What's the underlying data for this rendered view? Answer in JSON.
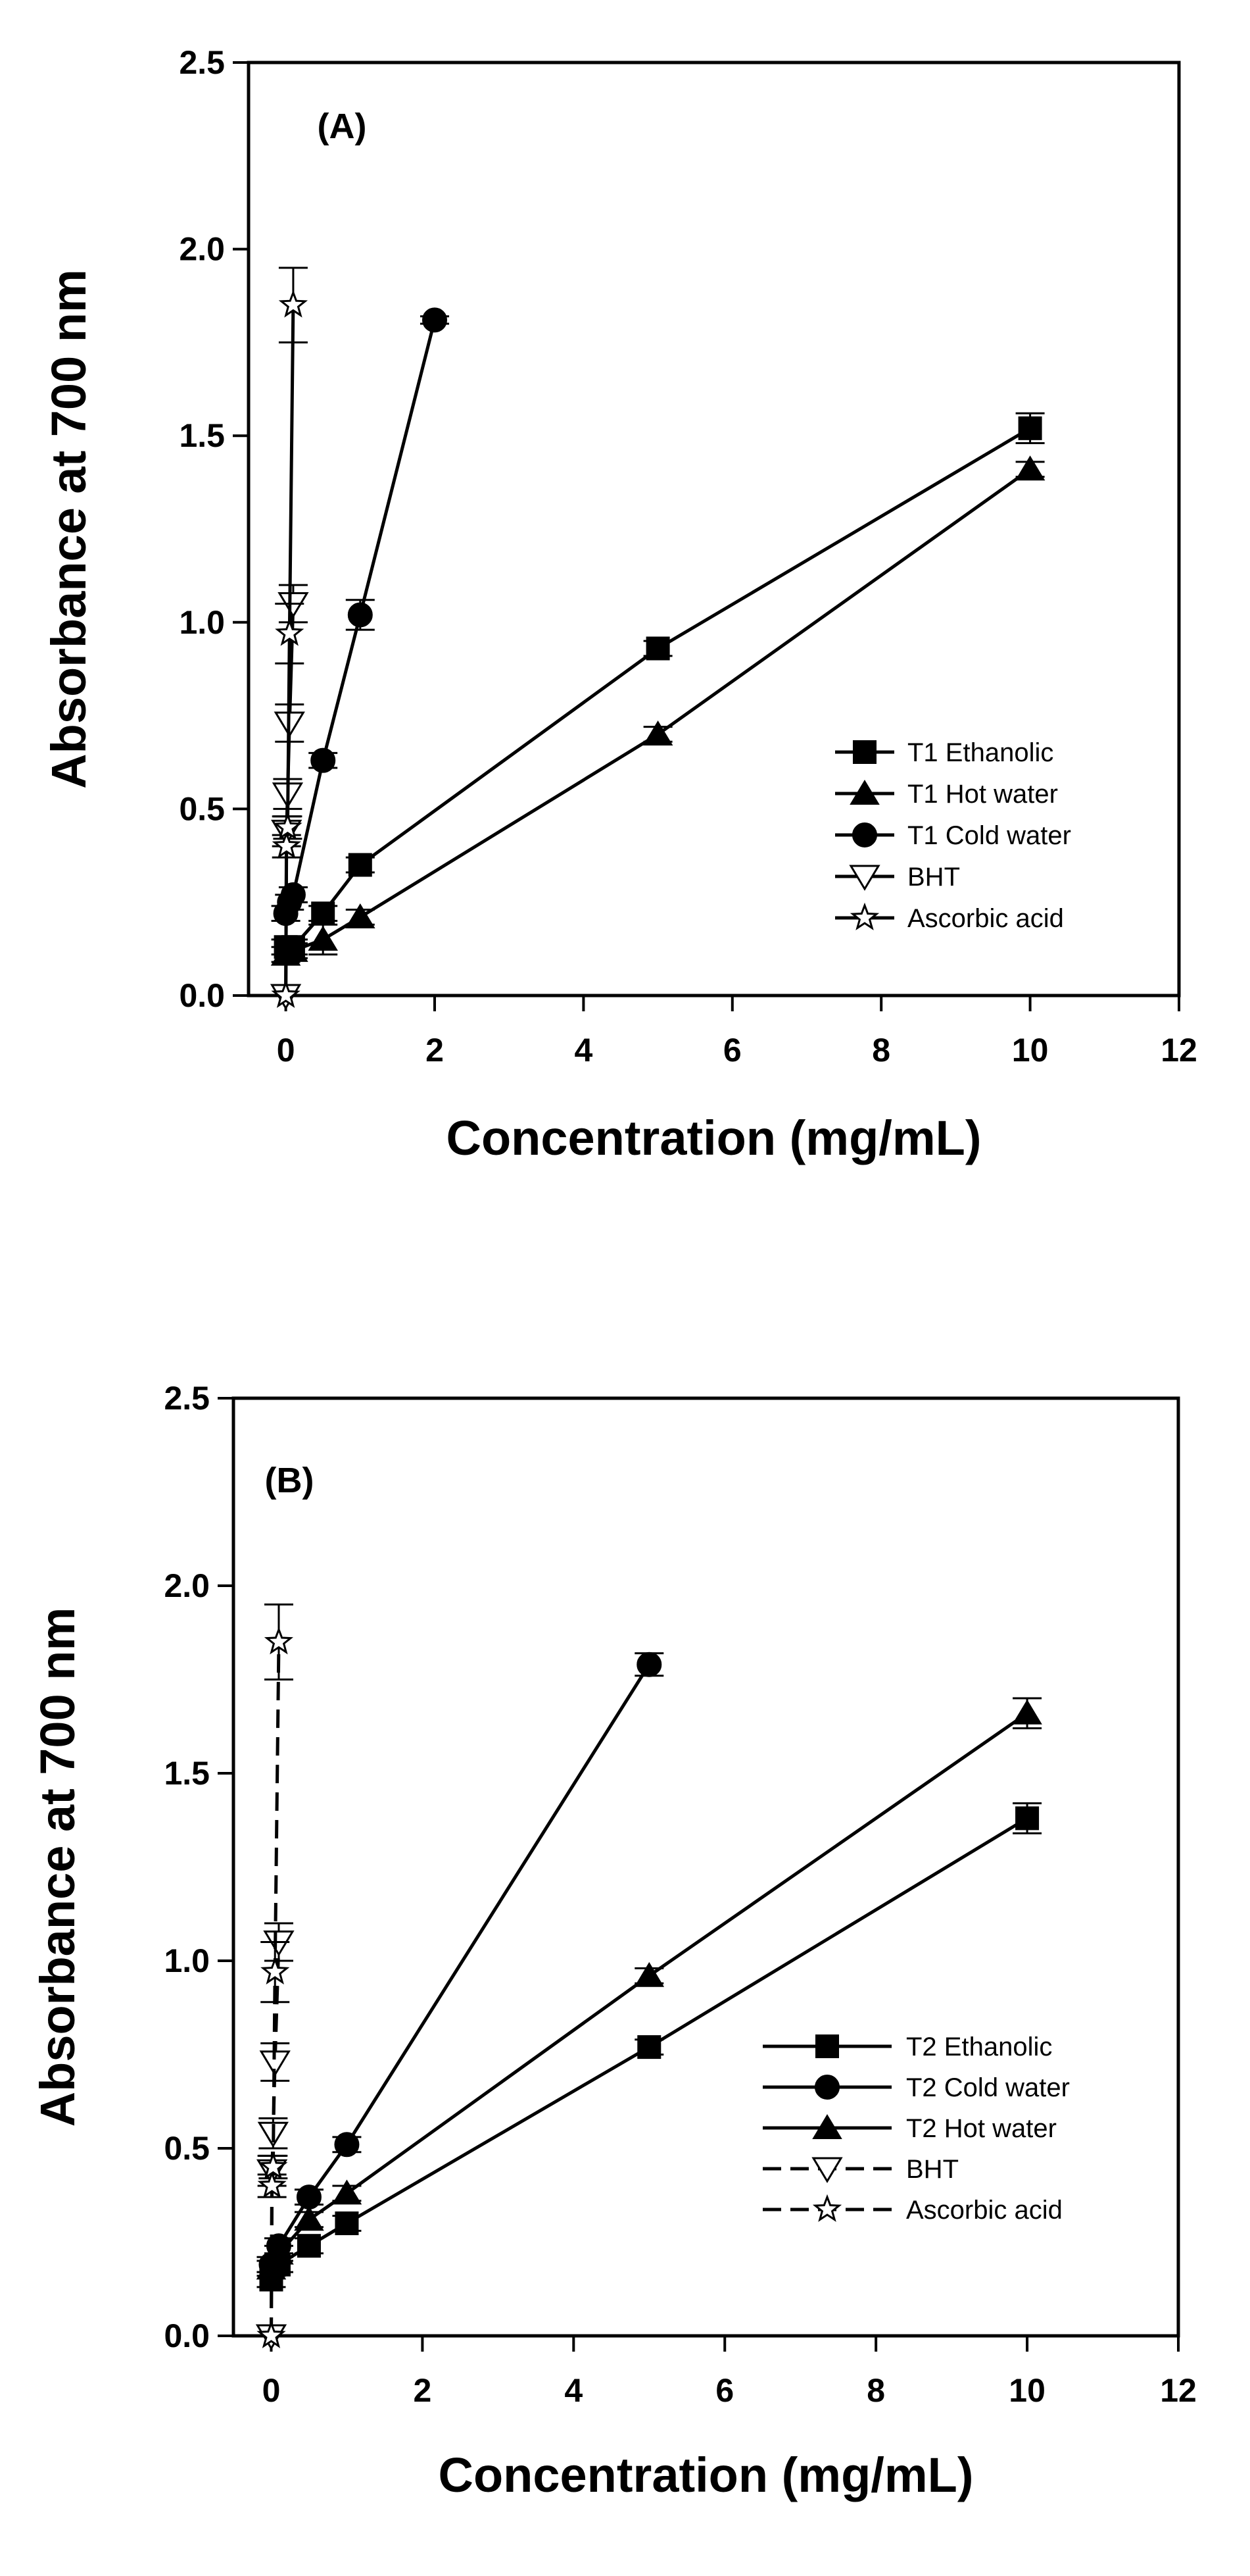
{
  "charts": [
    {
      "type": "line",
      "panel_label": "(A)",
      "xlabel": "Concentration (mg/mL)",
      "ylabel": "Absorbance at 700 nm",
      "xlim": [
        -0.5,
        12
      ],
      "ylim": [
        0,
        2.5
      ],
      "xticks": [
        "0",
        "2",
        "4",
        "6",
        "8",
        "10",
        "12"
      ],
      "yticks": [
        "0.0",
        "0.5",
        "1.0",
        "1.5",
        "2.0",
        "2.5"
      ],
      "legend_position": "lower-right",
      "series": [
        {
          "name": "T1 Ethanolic",
          "marker": "square",
          "filled": true,
          "dashed": false,
          "x": [
            0,
            0.1,
            0.5,
            1,
            5,
            10
          ],
          "y": [
            0.13,
            0.13,
            0.22,
            0.35,
            0.93,
            1.52
          ],
          "err": [
            0.02,
            0.02,
            0.02,
            0.02,
            0.02,
            0.04
          ]
        },
        {
          "name": "T1 Hot water",
          "marker": "triangle-up",
          "filled": true,
          "dashed": false,
          "x": [
            0,
            0.1,
            0.5,
            1,
            5,
            10
          ],
          "y": [
            0.11,
            0.12,
            0.15,
            0.21,
            0.7,
            1.41
          ],
          "err": [
            0.02,
            0.02,
            0.04,
            0.02,
            0.02,
            0.02
          ]
        },
        {
          "name": "T1 Cold water",
          "marker": "circle",
          "filled": true,
          "dashed": false,
          "x": [
            0,
            0.05,
            0.1,
            0.5,
            1,
            2
          ],
          "y": [
            0.22,
            0.25,
            0.27,
            0.63,
            1.02,
            1.81
          ],
          "err": [
            0.02,
            0.02,
            0.02,
            0.02,
            0.04,
            0.01
          ]
        },
        {
          "name": "BHT",
          "marker": "triangle-down",
          "filled": false,
          "dashed": false,
          "x": [
            0,
            0.01,
            0.025,
            0.05,
            0.1
          ],
          "y": [
            0.0,
            0.44,
            0.54,
            0.73,
            1.05
          ],
          "err": [
            0.0,
            0.04,
            0.04,
            0.05,
            0.05
          ]
        },
        {
          "name": "Ascorbic acid",
          "marker": "star",
          "filled": false,
          "dashed": false,
          "x": [
            0,
            0.01,
            0.025,
            0.05,
            0.1
          ],
          "y": [
            0.0,
            0.4,
            0.45,
            0.97,
            1.85
          ],
          "err": [
            0.0,
            0.03,
            0.03,
            0.08,
            0.1
          ]
        }
      ]
    },
    {
      "type": "line",
      "panel_label": "(B)",
      "xlabel": "Concentration (mg/mL)",
      "ylabel": "Absorbance at 700 nm",
      "xlim": [
        -0.5,
        12
      ],
      "ylim": [
        0,
        2.5
      ],
      "xticks": [
        "0",
        "2",
        "4",
        "6",
        "8",
        "10",
        "12"
      ],
      "yticks": [
        "0.0",
        "0.5",
        "1.0",
        "1.5",
        "2.0",
        "2.5"
      ],
      "legend_position": "lower-right",
      "series": [
        {
          "name": "T2 Ethanolic",
          "marker": "square",
          "filled": true,
          "dashed": false,
          "x": [
            0,
            0.1,
            0.5,
            1,
            5,
            10
          ],
          "y": [
            0.15,
            0.19,
            0.24,
            0.3,
            0.77,
            1.38
          ],
          "err": [
            0.02,
            0.02,
            0.02,
            0.02,
            0.02,
            0.04
          ]
        },
        {
          "name": "T2 Cold water",
          "marker": "circle",
          "filled": true,
          "dashed": false,
          "x": [
            0,
            0.1,
            0.5,
            1,
            5
          ],
          "y": [
            0.19,
            0.24,
            0.37,
            0.51,
            1.79
          ],
          "err": [
            0.02,
            0.02,
            0.02,
            0.02,
            0.03
          ]
        },
        {
          "name": "T2 Hot water",
          "marker": "triangle-up",
          "filled": true,
          "dashed": false,
          "x": [
            0,
            0.1,
            0.5,
            1,
            5,
            10
          ],
          "y": [
            0.18,
            0.22,
            0.31,
            0.38,
            0.96,
            1.66
          ],
          "err": [
            0.02,
            0.02,
            0.02,
            0.02,
            0.02,
            0.04
          ]
        },
        {
          "name": "BHT",
          "marker": "triangle-down",
          "filled": false,
          "dashed": true,
          "x": [
            0,
            0.01,
            0.025,
            0.05,
            0.1
          ],
          "y": [
            0.0,
            0.44,
            0.54,
            0.73,
            1.05
          ],
          "err": [
            0.0,
            0.04,
            0.04,
            0.05,
            0.05
          ]
        },
        {
          "name": "Ascorbic acid",
          "marker": "star",
          "filled": false,
          "dashed": true,
          "x": [
            0,
            0.01,
            0.025,
            0.05,
            0.1
          ],
          "y": [
            0.0,
            0.4,
            0.45,
            0.97,
            1.85
          ],
          "err": [
            0.0,
            0.03,
            0.03,
            0.08,
            0.1
          ]
        }
      ]
    }
  ],
  "chart_data": [
    {
      "type": "line",
      "title": "(A)",
      "xlabel": "Concentration (mg/mL)",
      "ylabel": "Absorbance at 700 nm",
      "xlim": [
        -0.5,
        12
      ],
      "ylim": [
        0,
        2.5
      ],
      "series": [
        {
          "name": "T1 Ethanolic",
          "x": [
            0,
            0.1,
            0.5,
            1,
            5,
            10
          ],
          "y": [
            0.13,
            0.13,
            0.22,
            0.35,
            0.93,
            1.52
          ]
        },
        {
          "name": "T1 Hot water",
          "x": [
            0,
            0.1,
            0.5,
            1,
            5,
            10
          ],
          "y": [
            0.11,
            0.12,
            0.15,
            0.21,
            0.7,
            1.41
          ]
        },
        {
          "name": "T1 Cold water",
          "x": [
            0,
            0.05,
            0.1,
            0.5,
            1,
            2
          ],
          "y": [
            0.22,
            0.25,
            0.27,
            0.63,
            1.02,
            1.81
          ]
        },
        {
          "name": "BHT",
          "x": [
            0,
            0.01,
            0.025,
            0.05,
            0.1
          ],
          "y": [
            0.0,
            0.44,
            0.54,
            0.73,
            1.05
          ]
        },
        {
          "name": "Ascorbic acid",
          "x": [
            0,
            0.01,
            0.025,
            0.05,
            0.1
          ],
          "y": [
            0.0,
            0.4,
            0.45,
            0.97,
            1.85
          ]
        }
      ]
    },
    {
      "type": "line",
      "title": "(B)",
      "xlabel": "Concentration (mg/mL)",
      "ylabel": "Absorbance at 700 nm",
      "xlim": [
        -0.5,
        12
      ],
      "ylim": [
        0,
        2.5
      ],
      "series": [
        {
          "name": "T2 Ethanolic",
          "x": [
            0,
            0.1,
            0.5,
            1,
            5,
            10
          ],
          "y": [
            0.15,
            0.19,
            0.24,
            0.3,
            0.77,
            1.38
          ]
        },
        {
          "name": "T2 Cold water",
          "x": [
            0,
            0.1,
            0.5,
            1,
            5
          ],
          "y": [
            0.19,
            0.24,
            0.37,
            0.51,
            1.79
          ]
        },
        {
          "name": "T2 Hot water",
          "x": [
            0,
            0.1,
            0.5,
            1,
            5,
            10
          ],
          "y": [
            0.18,
            0.22,
            0.31,
            0.38,
            0.96,
            1.66
          ]
        },
        {
          "name": "BHT",
          "x": [
            0,
            0.01,
            0.025,
            0.05,
            0.1
          ],
          "y": [
            0.0,
            0.44,
            0.54,
            0.73,
            1.05
          ]
        },
        {
          "name": "Ascorbic acid",
          "x": [
            0,
            0.01,
            0.025,
            0.05,
            0.1
          ],
          "y": [
            0.0,
            0.4,
            0.45,
            0.97,
            1.85
          ]
        }
      ]
    }
  ]
}
